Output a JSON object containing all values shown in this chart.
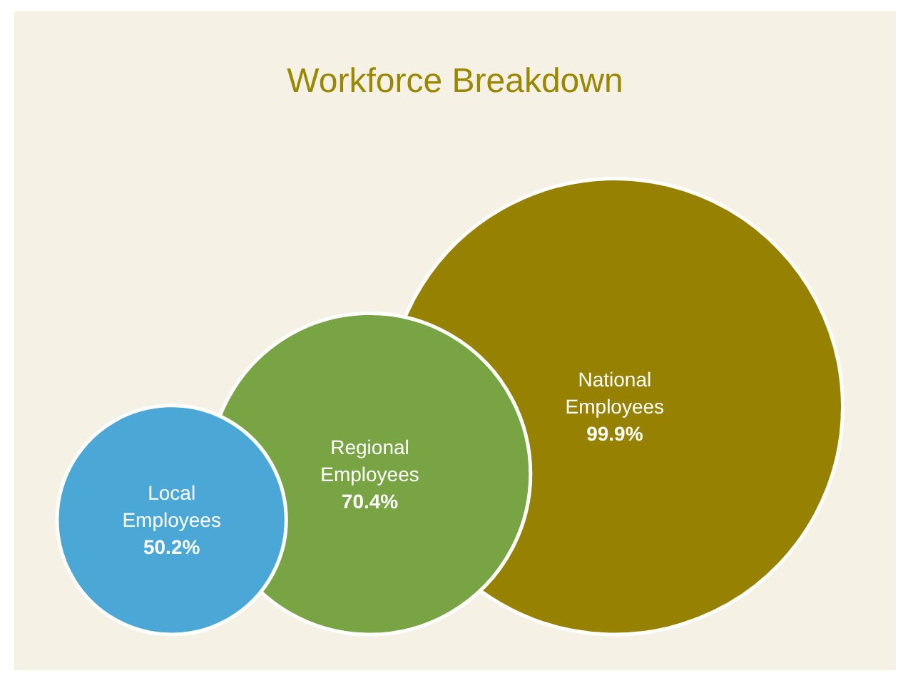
{
  "chart_data": {
    "type": "other",
    "title": "Workforce Breakdown",
    "categories": [
      "Local Employees",
      "Regional Employees",
      "National Employees"
    ],
    "values": [
      50.2,
      70.4,
      99.9
    ],
    "value_labels": [
      "50.2%",
      "70.4%",
      "99.9%"
    ],
    "colors": [
      "#4aa7d6",
      "#78a443",
      "#978200"
    ]
  }
}
